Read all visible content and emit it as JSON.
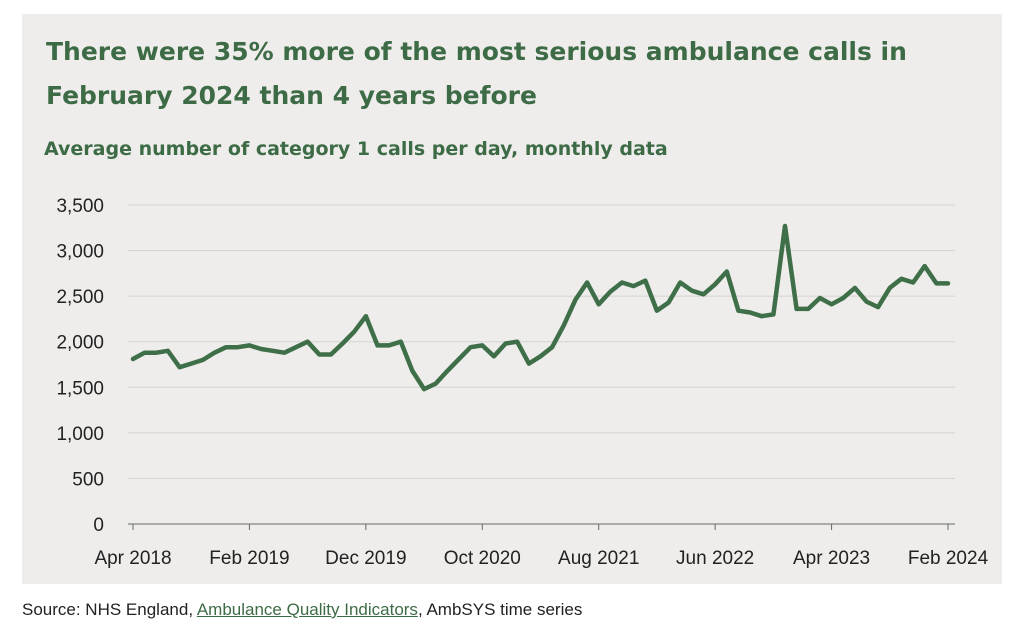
{
  "chart_data": {
    "type": "line",
    "title": "There were 35% more of the most serious ambulance calls in February 2024 than 4 years before",
    "subtitle": "Average number of category 1 calls per day, monthly data",
    "xlabel": "",
    "ylabel": "",
    "ylim": [
      0,
      3500
    ],
    "yticks": [
      "0",
      "500",
      "1,000",
      "1,500",
      "2,000",
      "2,500",
      "3,000",
      "3,500"
    ],
    "xtick_labels": [
      "Apr 2018",
      "Feb 2019",
      "Dec 2019",
      "Oct 2020",
      "Aug 2021",
      "Jun 2022",
      "Apr 2023",
      "Feb 2024"
    ],
    "grid": true,
    "legend": "none",
    "line_color": "#3e6f48",
    "series": [
      {
        "x": [
          "Apr 2018",
          "May 2018",
          "Jun 2018",
          "Jul 2018",
          "Aug 2018",
          "Sep 2018",
          "Oct 2018",
          "Nov 2018",
          "Dec 2018",
          "Jan 2019",
          "Feb 2019",
          "Mar 2019",
          "Apr 2019",
          "May 2019",
          "Jun 2019",
          "Jul 2019",
          "Aug 2019",
          "Sep 2019",
          "Oct 2019",
          "Nov 2019",
          "Dec 2019",
          "Jan 2020",
          "Feb 2020",
          "Mar 2020",
          "Apr 2020",
          "May 2020",
          "Jun 2020",
          "Jul 2020",
          "Aug 2020",
          "Sep 2020",
          "Oct 2020",
          "Nov 2020",
          "Dec 2020",
          "Jan 2021",
          "Feb 2021",
          "Mar 2021",
          "Apr 2021",
          "May 2021",
          "Jun 2021",
          "Jul 2021",
          "Aug 2021",
          "Sep 2021",
          "Oct 2021",
          "Nov 2021",
          "Dec 2021",
          "Jan 2022",
          "Feb 2022",
          "Mar 2022",
          "Apr 2022",
          "May 2022",
          "Jun 2022",
          "Jul 2022",
          "Aug 2022",
          "Sep 2022",
          "Oct 2022",
          "Nov 2022",
          "Dec 2022",
          "Jan 2023",
          "Feb 2023",
          "Mar 2023",
          "Apr 2023",
          "May 2023",
          "Jun 2023",
          "Jul 2023",
          "Aug 2023",
          "Sep 2023",
          "Oct 2023",
          "Nov 2023",
          "Dec 2023",
          "Jan 2024",
          "Feb 2024"
        ],
        "values": [
          1810,
          1880,
          1880,
          1900,
          1720,
          1760,
          1800,
          1880,
          1940,
          1940,
          1960,
          1920,
          1900,
          1880,
          1940,
          2000,
          1860,
          1860,
          1980,
          2110,
          2280,
          1960,
          1960,
          2000,
          1680,
          1480,
          1540,
          1680,
          1810,
          1940,
          1960,
          1840,
          1980,
          2000,
          1760,
          1840,
          1940,
          2180,
          2460,
          2650,
          2410,
          2550,
          2650,
          2610,
          2670,
          2340,
          2430,
          2650,
          2560,
          2520,
          2630,
          2770,
          2340,
          2320,
          2280,
          2300,
          3270,
          2360,
          2360,
          2480,
          2410,
          2480,
          2590,
          2440,
          2380,
          2590,
          2690,
          2650,
          2830,
          2640,
          2640
        ]
      }
    ]
  },
  "footer": {
    "source_prefix": "Source: NHS England, ",
    "source_link": "Ambulance Quality Indicators",
    "source_suffix": ", AmbSYS time series"
  }
}
